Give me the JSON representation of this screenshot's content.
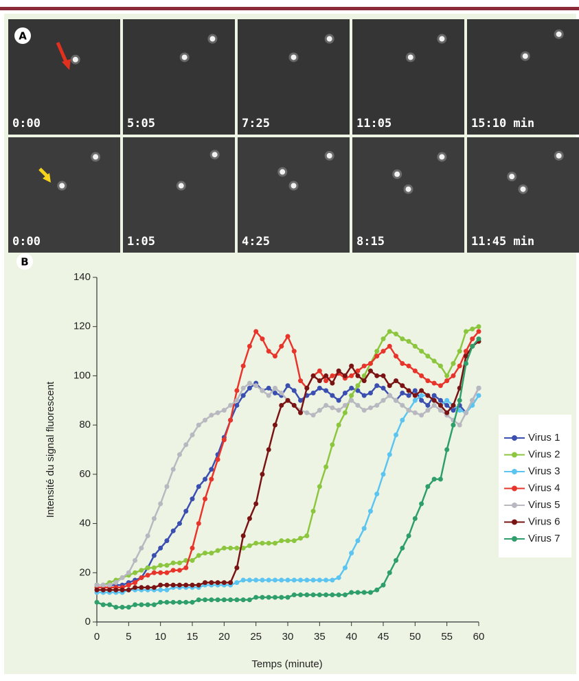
{
  "panel_a": {
    "label": "A",
    "rows": [
      [
        "0:00",
        "5:05",
        "7:25",
        "11:05",
        "15:10 min"
      ],
      [
        "0:00",
        "1:05",
        "4:25",
        "8:15",
        "11:45 min"
      ]
    ]
  },
  "chart_data": {
    "type": "line",
    "label": "B",
    "xlabel": "Temps (minute)",
    "ylabel": "Intensité du signal fluorescent",
    "xlim": [
      0,
      60
    ],
    "xticks": [
      0,
      5,
      10,
      15,
      20,
      25,
      30,
      35,
      40,
      45,
      50,
      55,
      60
    ],
    "ylim": [
      0,
      140
    ],
    "yticks": [
      0,
      20,
      40,
      60,
      80,
      100,
      120,
      140
    ],
    "x": [
      0,
      1,
      2,
      3,
      4,
      5,
      6,
      7,
      8,
      9,
      10,
      11,
      12,
      13,
      14,
      15,
      16,
      17,
      18,
      19,
      20,
      21,
      22,
      23,
      24,
      25,
      26,
      27,
      28,
      29,
      30,
      31,
      32,
      33,
      34,
      35,
      36,
      37,
      38,
      39,
      40,
      41,
      42,
      43,
      44,
      45,
      46,
      47,
      48,
      49,
      50,
      51,
      52,
      53,
      54,
      55,
      56,
      57,
      58,
      59,
      60
    ],
    "series": [
      {
        "name": "Virus 1",
        "color": "#3b4fb0",
        "values": [
          15,
          15,
          15,
          15,
          15,
          16,
          17,
          18,
          22,
          27,
          30,
          33,
          37,
          40,
          45,
          50,
          55,
          58,
          62,
          68,
          75,
          82,
          88,
          92,
          95,
          97,
          94,
          95,
          93,
          92,
          96,
          94,
          90,
          92,
          93,
          95,
          94,
          92,
          90,
          93,
          95,
          94,
          92,
          93,
          96,
          95,
          92,
          90,
          93,
          92,
          94,
          90,
          88,
          92,
          90,
          88,
          86,
          88,
          85,
          90,
          95
        ]
      },
      {
        "name": "Virus 2",
        "color": "#8cc63f",
        "values": [
          15,
          15,
          16,
          17,
          18,
          19,
          20,
          21,
          22,
          22,
          23,
          23,
          24,
          24,
          25,
          25,
          27,
          28,
          28,
          29,
          30,
          30,
          30,
          30,
          31,
          32,
          32,
          32,
          32,
          33,
          33,
          33,
          34,
          35,
          45,
          55,
          63,
          72,
          80,
          85,
          92,
          96,
          100,
          105,
          110,
          115,
          118,
          117,
          115,
          114,
          112,
          110,
          108,
          106,
          104,
          100,
          105,
          110,
          118,
          119,
          120
        ]
      },
      {
        "name": "Virus 3",
        "color": "#5bc4f0",
        "values": [
          12,
          12,
          12,
          12,
          12,
          13,
          13,
          13,
          13,
          13,
          13,
          13,
          14,
          14,
          14,
          14,
          14,
          15,
          15,
          15,
          15,
          15,
          16,
          17,
          17,
          17,
          17,
          17,
          17,
          17,
          17,
          17,
          17,
          17,
          17,
          17,
          17,
          17,
          18,
          22,
          28,
          33,
          38,
          45,
          52,
          60,
          68,
          76,
          82,
          86,
          90,
          92,
          92,
          90,
          88,
          90,
          88,
          86,
          85,
          88,
          92
        ]
      },
      {
        "name": "Virus 4",
        "color": "#e8352b",
        "values": [
          14,
          14,
          14,
          14,
          14,
          15,
          16,
          18,
          19,
          20,
          20,
          20,
          21,
          21,
          22,
          30,
          40,
          50,
          58,
          66,
          74,
          82,
          94,
          104,
          112,
          118,
          115,
          110,
          108,
          112,
          116,
          110,
          98,
          95,
          100,
          102,
          98,
          100,
          101,
          99,
          100,
          102,
          104,
          105,
          108,
          110,
          112,
          108,
          105,
          104,
          102,
          100,
          98,
          97,
          96,
          98,
          100,
          104,
          110,
          115,
          118
        ]
      },
      {
        "name": "Virus 5",
        "color": "#b8b8c0",
        "values": [
          15,
          15,
          15,
          16,
          18,
          20,
          25,
          30,
          35,
          42,
          48,
          55,
          62,
          68,
          72,
          76,
          80,
          82,
          84,
          85,
          86,
          88,
          90,
          95,
          97,
          96,
          94,
          92,
          95,
          93,
          90,
          88,
          86,
          85,
          84,
          86,
          88,
          87,
          86,
          88,
          90,
          88,
          86,
          87,
          88,
          90,
          92,
          90,
          88,
          86,
          85,
          84,
          86,
          88,
          86,
          84,
          82,
          80,
          85,
          90,
          95
        ]
      },
      {
        "name": "Virus 6",
        "color": "#7a1313",
        "values": [
          13,
          13,
          13,
          13,
          13,
          13,
          14,
          14,
          14,
          14,
          15,
          15,
          15,
          15,
          15,
          15,
          15,
          16,
          16,
          16,
          16,
          16,
          22,
          35,
          42,
          48,
          60,
          70,
          80,
          88,
          90,
          88,
          85,
          95,
          100,
          98,
          100,
          97,
          102,
          100,
          104,
          100,
          98,
          102,
          100,
          100,
          96,
          98,
          96,
          94,
          92,
          94,
          92,
          90,
          88,
          85,
          88,
          95,
          108,
          112,
          114
        ]
      },
      {
        "name": "Virus 7",
        "color": "#2e9e6a",
        "values": [
          8,
          7,
          7,
          6,
          6,
          6,
          7,
          7,
          7,
          7,
          8,
          8,
          8,
          8,
          8,
          8,
          9,
          9,
          9,
          9,
          9,
          9,
          9,
          9,
          9,
          10,
          10,
          10,
          10,
          10,
          10,
          11,
          11,
          11,
          11,
          11,
          11,
          11,
          11,
          11,
          12,
          12,
          12,
          12,
          13,
          15,
          20,
          25,
          30,
          35,
          42,
          48,
          55,
          58,
          58,
          70,
          80,
          90,
          105,
          112,
          115
        ]
      }
    ]
  }
}
